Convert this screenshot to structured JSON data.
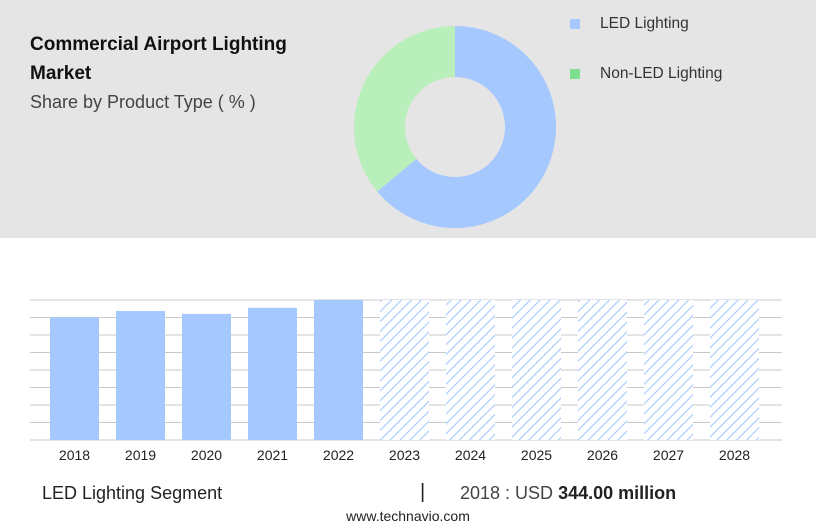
{
  "header": {
    "title": "Commercial Airport Lighting Market",
    "subtitle": "Share by Product Type ( % )"
  },
  "legend": [
    {
      "label": "LED Lighting",
      "color": "#a5c8ff"
    },
    {
      "label": "Non-LED Lighting",
      "color": "#7ee08f"
    }
  ],
  "footer": {
    "segment_label": "LED Lighting Segment",
    "separator": "|",
    "year_prefix": "2018 : USD",
    "value": "344.00 million",
    "website": "www.technavio.com"
  },
  "colors": {
    "led": "#a5c8ff",
    "non_led_donut": "#b9efba",
    "hatch": "#a5c8ff",
    "grid": "#c8c8c8"
  },
  "chart_data": [
    {
      "type": "pie",
      "title": "Share by Product Type ( % )",
      "categories": [
        "LED Lighting",
        "Non-LED Lighting"
      ],
      "values": [
        64,
        36
      ]
    },
    {
      "type": "bar",
      "xlabel": "",
      "ylabel": "",
      "categories": [
        "2018",
        "2019",
        "2020",
        "2021",
        "2022",
        "2023",
        "2024",
        "2025",
        "2026",
        "2027",
        "2028"
      ],
      "values": [
        344.0,
        362.0,
        354.0,
        371.0,
        393.0,
        null,
        null,
        null,
        null,
        null,
        null
      ],
      "forecast_categories": [
        "2023",
        "2024",
        "2025",
        "2026",
        "2027",
        "2028"
      ],
      "grid": true,
      "ylim": [
        0,
        393.0
      ]
    }
  ]
}
